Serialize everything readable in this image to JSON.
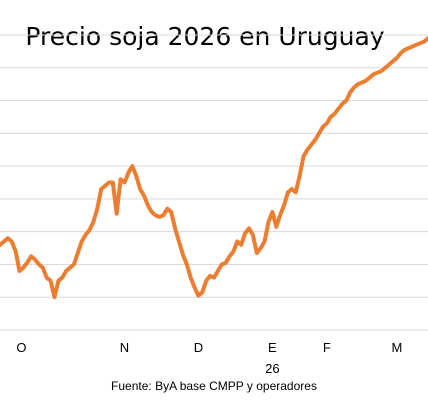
{
  "chart_data": {
    "type": "line",
    "title": "Precio soja 2026 en Uruguay",
    "source": "Fuente: ByA  base  CMPP y operadores",
    "x_ticks": [
      {
        "label": "O",
        "at": 3.5
      },
      {
        "label": "N",
        "at": 30
      },
      {
        "label": "D",
        "at": 49
      },
      {
        "label": "E",
        "at": 68
      },
      {
        "label": "F",
        "at": 82
      },
      {
        "label": "M",
        "at": 100
      }
    ],
    "year_label": {
      "label": "26",
      "at": 68
    },
    "line_color": "#ED7D31",
    "grid": true,
    "x_range": [
      -2,
      108
    ],
    "y_range": [
      0,
      9
    ],
    "y_ticks": [
      0,
      1,
      2,
      3,
      4,
      5,
      6,
      7,
      8,
      9
    ],
    "x": [
      -2,
      -1,
      0,
      1,
      2,
      3,
      4,
      5,
      6,
      7,
      8,
      9,
      10,
      11,
      12,
      13,
      14,
      15,
      16,
      17,
      18,
      19,
      20,
      21,
      22,
      23,
      24,
      25,
      26,
      27,
      28,
      29,
      30,
      31,
      32,
      33,
      34,
      35,
      36,
      37,
      38,
      39,
      40,
      41,
      42,
      43,
      44,
      45,
      46,
      47,
      48,
      49,
      50,
      51,
      52,
      53,
      54,
      55,
      56,
      57,
      58,
      59,
      60,
      61,
      62,
      63,
      64,
      65,
      66,
      67,
      68,
      69,
      70,
      71,
      72,
      73,
      74,
      75,
      76,
      77,
      78,
      79,
      80,
      81,
      82,
      83,
      84,
      85,
      86,
      87,
      88,
      89,
      90,
      91,
      92,
      93,
      94,
      95,
      96,
      97,
      98,
      99,
      100,
      101,
      102,
      103,
      104,
      105,
      106,
      107,
      108
    ],
    "values": [
      2.6,
      2.7,
      2.8,
      2.7,
      2.4,
      1.8,
      1.9,
      2.05,
      2.25,
      2.15,
      2.0,
      1.9,
      1.6,
      1.5,
      1.0,
      1.5,
      1.6,
      1.8,
      1.9,
      2.0,
      2.35,
      2.7,
      2.9,
      3.05,
      3.3,
      3.7,
      4.3,
      4.4,
      4.5,
      4.5,
      3.55,
      4.6,
      4.5,
      4.8,
      5.0,
      4.7,
      4.3,
      4.1,
      3.8,
      3.6,
      3.5,
      3.45,
      3.5,
      3.7,
      3.6,
      3.1,
      2.7,
      2.3,
      2.0,
      1.6,
      1.3,
      1.05,
      1.15,
      1.5,
      1.65,
      1.6,
      1.8,
      2.0,
      2.05,
      2.25,
      2.4,
      2.7,
      2.6,
      2.95,
      3.1,
      2.9,
      2.35,
      2.5,
      2.7,
      3.3,
      3.6,
      3.15,
      3.5,
      3.8,
      4.2,
      4.3,
      4.2,
      4.7,
      5.3,
      5.5,
      5.65,
      5.8,
      6.0,
      6.2,
      6.3,
      6.5,
      6.6,
      6.75,
      6.9,
      7.0,
      7.25,
      7.4,
      7.5,
      7.55,
      7.6,
      7.7,
      7.8,
      7.85,
      7.9,
      8.0,
      8.1,
      8.2,
      8.3,
      8.45,
      8.55,
      8.6,
      8.65,
      8.7,
      8.75,
      8.8,
      8.9
    ]
  }
}
